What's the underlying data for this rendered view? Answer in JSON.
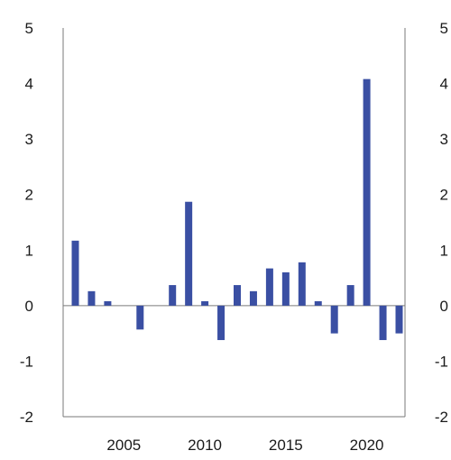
{
  "chart_data": {
    "type": "bar",
    "title": "",
    "xlabel": "",
    "ylabel": "",
    "x": [
      2002,
      2003,
      2004,
      2005,
      2006,
      2007,
      2008,
      2009,
      2010,
      2011,
      2012,
      2013,
      2014,
      2015,
      2016,
      2017,
      2018,
      2019,
      2020,
      2021,
      2022
    ],
    "values": [
      1.17,
      0.26,
      0.08,
      0,
      -0.43,
      0,
      0.37,
      1.87,
      0.08,
      -0.62,
      0.37,
      0.26,
      0.67,
      0.6,
      0.78,
      0.08,
      -0.5,
      0.37,
      4.08,
      -0.62,
      -0.5
    ],
    "ylim": [
      -2,
      5
    ],
    "yticks": [
      "5",
      "4",
      "3",
      "2",
      "1",
      "0",
      "-1",
      "-2"
    ],
    "xticks": [
      "2005",
      "2010",
      "2015",
      "2020"
    ],
    "y_axis_both_sides": true,
    "grid": false,
    "bar_color": "#3a4fa3"
  }
}
